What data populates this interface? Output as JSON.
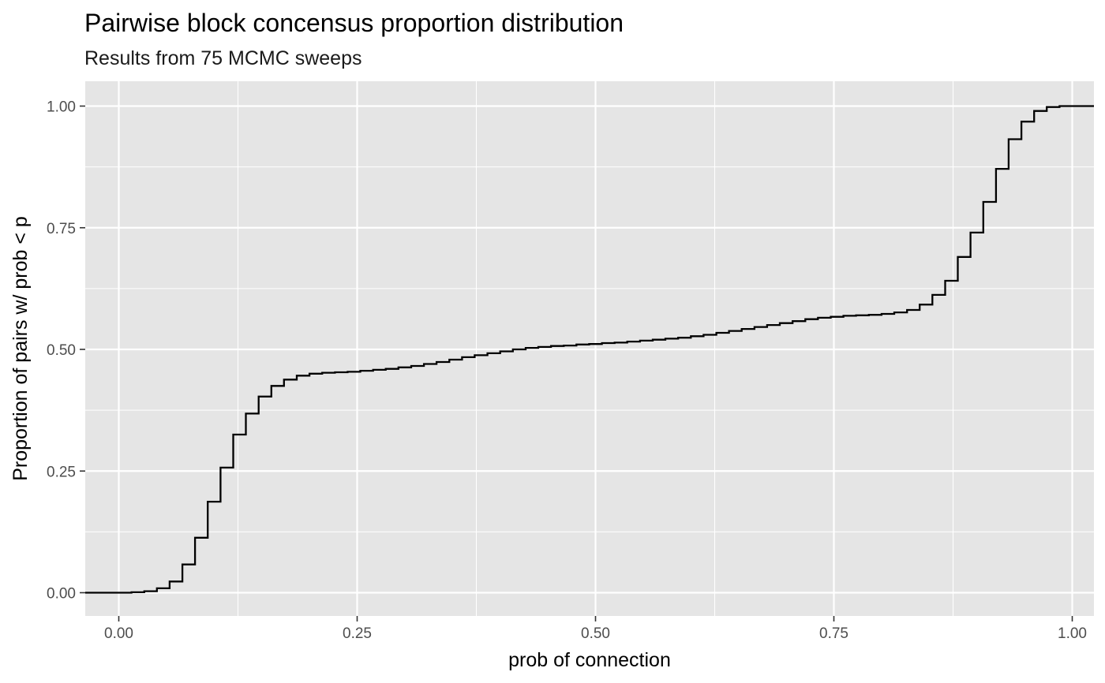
{
  "chart_data": {
    "type": "line",
    "step": true,
    "title": "Pairwise block concensus proportion distribution",
    "subtitle": "Results from 75 MCMC sweeps",
    "xlabel": "prob of connection",
    "ylabel": "Proportion of pairs w/ prob < p",
    "xlim": [
      -0.035,
      1.02
    ],
    "ylim": [
      -0.05,
      1.05
    ],
    "x_ticks": [
      0.0,
      0.25,
      0.5,
      0.75,
      1.0
    ],
    "x_tick_labels": [
      "0.00",
      "0.25",
      "0.50",
      "0.75",
      "1.00"
    ],
    "y_ticks": [
      0.0,
      0.25,
      0.5,
      0.75,
      1.0
    ],
    "y_tick_labels": [
      "0.00",
      "0.25",
      "0.50",
      "0.75",
      "1.00"
    ],
    "grid": true,
    "legend": "none",
    "colors": {
      "panel": "#e5e5e5",
      "grid": "#ffffff",
      "line": "#000000",
      "tick_text": "#4d4d4d"
    },
    "series": [
      {
        "x": [
          0.0133,
          0.0267,
          0.04,
          0.0533,
          0.0667,
          0.08,
          0.0933,
          0.1067,
          0.12,
          0.1333,
          0.1467,
          0.16,
          0.1733,
          0.1867,
          0.2,
          0.2133,
          0.2267,
          0.24,
          0.2533,
          0.2667,
          0.28,
          0.2933,
          0.3067,
          0.32,
          0.3333,
          0.3467,
          0.36,
          0.3733,
          0.3867,
          0.4,
          0.4133,
          0.4267,
          0.44,
          0.4533,
          0.4667,
          0.48,
          0.4933,
          0.5067,
          0.52,
          0.5333,
          0.5467,
          0.56,
          0.5733,
          0.5867,
          0.6,
          0.6133,
          0.6267,
          0.64,
          0.6533,
          0.6667,
          0.68,
          0.6933,
          0.7067,
          0.72,
          0.7333,
          0.7467,
          0.76,
          0.7733,
          0.7867,
          0.8,
          0.8133,
          0.8267,
          0.84,
          0.8533,
          0.8667,
          0.88,
          0.8933,
          0.9067,
          0.92,
          0.9333,
          0.9467,
          0.96,
          0.9733,
          0.9867,
          1.0
        ],
        "y": [
          0.001,
          0.003,
          0.009,
          0.023,
          0.058,
          0.113,
          0.187,
          0.257,
          0.325,
          0.368,
          0.403,
          0.425,
          0.438,
          0.446,
          0.45,
          0.452,
          0.453,
          0.454,
          0.456,
          0.458,
          0.46,
          0.463,
          0.466,
          0.47,
          0.474,
          0.479,
          0.484,
          0.488,
          0.492,
          0.496,
          0.5,
          0.503,
          0.505,
          0.507,
          0.508,
          0.51,
          0.511,
          0.513,
          0.514,
          0.516,
          0.518,
          0.52,
          0.522,
          0.524,
          0.527,
          0.53,
          0.534,
          0.538,
          0.542,
          0.546,
          0.55,
          0.554,
          0.558,
          0.562,
          0.565,
          0.567,
          0.569,
          0.57,
          0.571,
          0.573,
          0.576,
          0.581,
          0.592,
          0.612,
          0.641,
          0.69,
          0.74,
          0.803,
          0.871,
          0.932,
          0.968,
          0.99,
          0.998,
          1.0,
          1.0
        ]
      }
    ]
  }
}
